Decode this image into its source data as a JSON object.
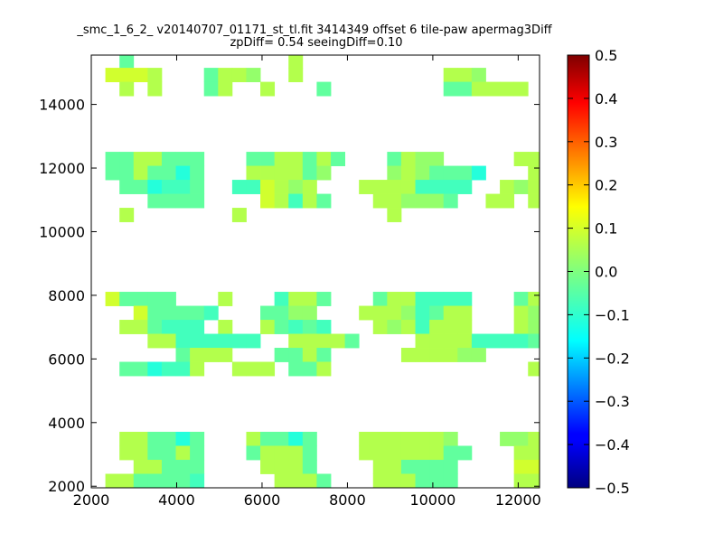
{
  "chart_data": {
    "type": "heatmap",
    "title": "_smc_1_6_2_ v20140707_01171_st_tl.fit 3414349 offset 6 tile-paw apermag3Diff",
    "subtitle": "zpDiff= 0.54 seeingDiff=0.10",
    "xlim": [
      2000,
      12500
    ],
    "ylim": [
      1950,
      15550
    ],
    "x_ticks": [
      "2000",
      "4000",
      "6000",
      "8000",
      "10000",
      "12000"
    ],
    "y_ticks": [
      "2000",
      "4000",
      "6000",
      "8000",
      "10000",
      "12000",
      "14000"
    ],
    "colorbar": {
      "min": -0.5,
      "max": 0.5,
      "ticks": [
        "0.5",
        "0.4",
        "0.3",
        "0.2",
        "0.1",
        "0.0",
        "−0.1",
        "−0.2",
        "−0.3",
        "−0.4",
        "−0.5"
      ]
    },
    "grid": {
      "x0": 2000,
      "y0": 1950,
      "cell_w": 330,
      "cell_h": 440,
      "ncols": 32,
      "nrows": 31,
      "nodata": ".",
      "value_levels": {
        "a": 0.08,
        "b": 0.05,
        "c": 0.02,
        "d": -0.03,
        "e": -0.06,
        "f": -0.09,
        "g": 0.13,
        "h": -0.26
      },
      "rows": [
        "..d...........b...................",
        ".aaab...dbbc..b..........bbc.....ggg..",
        "..b.b...db..b...d........ddbbbb",
        "",
        "",
        "",
        "",
        ".ddbbddd...ddbbdbd...dbcc.....bbbbb",
        ".ddbddfd...bbbbdc....cbcdddf...bbdd..",
        "..ddfeed..eeabcb...bbbbeeee..bcbcc.",
        "....dddd....abebd...bbcccd..bb.bbb",
        "..b.......b..........b..........gg",
        "",
        "",
        "",
        "",
        "",
        ".adddd...b...ebbd...dbbeeee...dbbddd",
        "...adddde...ddcc...bbbcedbb...bcbbbd",
        "..bbdeee.b..bdede...bcbebbb...bcbbbd",
        "....bbeeeeee..bbbbd....bbbbeeeed...",
        "......dbbb...ddbd.....bbbbcc....bbbbbbb",
        "..ddfeeb..bbb.ddb..............bbbbbbbb",
        "",
        "",
        "",
        "",
        "..bbddfd...bddfd...bbbbbbc...ccbb...bb",
        "..bbddbd...dbbbd...bbbbbbdd...bbbbbbgg",
        "...bbddd....bbbd....bbdddd....aaabb.",
        ".bbdddde.....bbbd...bbbddd....bbbb.."
      ]
    }
  }
}
